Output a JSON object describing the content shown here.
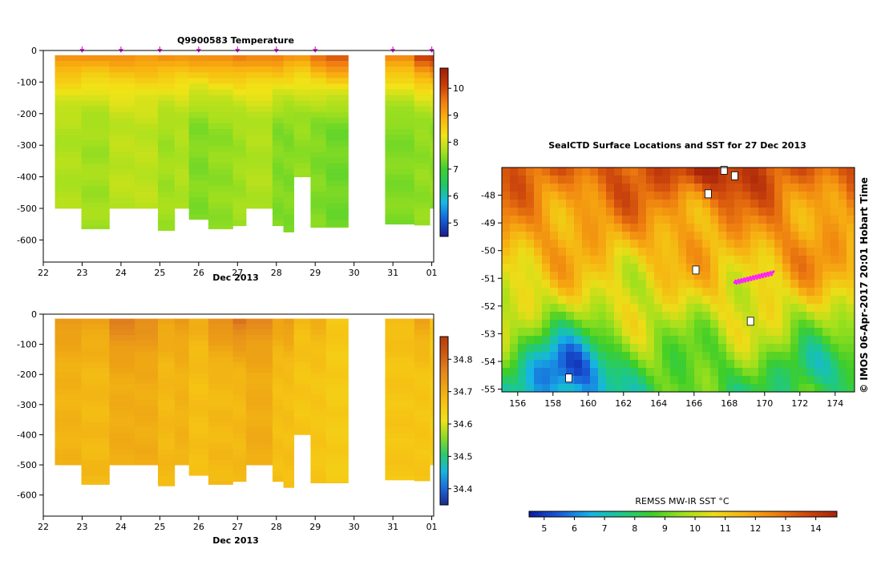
{
  "figure": {
    "colors": {
      "temperature_ramp": [
        "#1a1a8c",
        "#1560d8",
        "#17b8e8",
        "#1ec86a",
        "#3ecf2f",
        "#a6e01e",
        "#f1e317",
        "#f9b410",
        "#f07e12",
        "#c83c0a",
        "#a01e08"
      ],
      "salinity_ramp": [
        "#1a2a8c",
        "#1e6ad8",
        "#18b5dc",
        "#2ec86a",
        "#8fd82a",
        "#f0e21a",
        "#f6c414",
        "#eea414",
        "#e2841e",
        "#cc5a14",
        "#b43c0a"
      ],
      "sst_ramp": [
        "#0a1aa0",
        "#1a5cd8",
        "#16b4e6",
        "#1cc88c",
        "#3ece28",
        "#9ee01c",
        "#ecdd18",
        "#f7b212",
        "#ef8010",
        "#cf4a0c",
        "#a8240a"
      ],
      "track_magenta": "#ff20ff",
      "profile_marker": "#d820d8"
    }
  },
  "chart_data": [
    {
      "id": "temperature_section",
      "type": "heatmap",
      "title": "Q9900583  Temperature",
      "xlabel": "Dec 2013",
      "x_ticks": [
        "22",
        "23",
        "24",
        "25",
        "26",
        "27",
        "28",
        "29",
        "30",
        "31",
        "01"
      ],
      "x_tick_values": [
        22,
        23,
        24,
        25,
        26,
        27,
        28,
        29,
        30,
        31,
        32
      ],
      "xlim": [
        22,
        32.05
      ],
      "y_ticks": [
        "0",
        "-100",
        "-200",
        "-300",
        "-400",
        "-500",
        "-600"
      ],
      "y_tick_values": [
        0,
        -100,
        -200,
        -300,
        -400,
        -500,
        -600
      ],
      "ylim": [
        -670,
        0
      ],
      "colorbar_ticks": [
        "5",
        "6",
        "7",
        "8",
        "9",
        "10"
      ],
      "colorbar_tick_values": [
        5,
        6,
        7,
        8,
        9,
        10
      ],
      "colorbar_range": [
        4.5,
        10.75
      ],
      "profiles": [
        {
          "x0": 22.3,
          "x1": 22.98,
          "bottom": -500,
          "top_value": 9.5,
          "deep_value": 7.7
        },
        {
          "x0": 22.98,
          "x1": 23.7,
          "bottom": -565,
          "top_value": 9.4,
          "deep_value": 7.6
        },
        {
          "x0": 23.7,
          "x1": 24.35,
          "bottom": -500,
          "top_value": 9.4,
          "deep_value": 7.8
        },
        {
          "x0": 24.35,
          "x1": 24.95,
          "bottom": -500,
          "top_value": 9.4,
          "deep_value": 7.8
        },
        {
          "x0": 24.95,
          "x1": 25.38,
          "bottom": -570,
          "top_value": 9.5,
          "deep_value": 7.6
        },
        {
          "x0": 25.38,
          "x1": 25.75,
          "bottom": -500,
          "top_value": 9.3,
          "deep_value": 7.7
        },
        {
          "x0": 25.75,
          "x1": 26.25,
          "bottom": -535,
          "top_value": 9.5,
          "deep_value": 7.4
        },
        {
          "x0": 26.25,
          "x1": 26.88,
          "bottom": -565,
          "top_value": 9.6,
          "deep_value": 7.5
        },
        {
          "x0": 26.88,
          "x1": 27.22,
          "bottom": -555,
          "top_value": 9.7,
          "deep_value": 7.6
        },
        {
          "x0": 27.22,
          "x1": 27.9,
          "bottom": -500,
          "top_value": 9.5,
          "deep_value": 7.7
        },
        {
          "x0": 27.9,
          "x1": 28.18,
          "bottom": -555,
          "top_value": 9.7,
          "deep_value": 7.4
        },
        {
          "x0": 28.18,
          "x1": 28.45,
          "bottom": -575,
          "top_value": 9.5,
          "deep_value": 7.4
        },
        {
          "x0": 28.45,
          "x1": 28.88,
          "bottom": -400,
          "top_value": 9.3,
          "deep_value": 7.5
        },
        {
          "x0": 28.88,
          "x1": 29.28,
          "bottom": -560,
          "top_value": 9.8,
          "deep_value": 7.4
        },
        {
          "x0": 29.28,
          "x1": 29.85,
          "bottom": -560,
          "top_value": 10.2,
          "deep_value": 7.3
        },
        {
          "x0": 30.8,
          "x1": 31.55,
          "bottom": -550,
          "top_value": 9.6,
          "deep_value": 7.4
        },
        {
          "x0": 31.55,
          "x1": 31.95,
          "bottom": -553,
          "top_value": 10.3,
          "deep_value": 7.5
        },
        {
          "x0": 31.95,
          "x1": 32.05,
          "bottom": -500,
          "top_value": 10.5,
          "deep_value": 7.5
        }
      ],
      "profile_markers_x": [
        23.0,
        24.0,
        25.0,
        26.0,
        27.0,
        28.0,
        29.0,
        31.0,
        32.0
      ]
    },
    {
      "id": "salinity_section",
      "type": "heatmap",
      "title": "",
      "xlabel": "Dec 2013",
      "x_ticks": [
        "22",
        "23",
        "24",
        "25",
        "26",
        "27",
        "28",
        "29",
        "30",
        "31",
        "01"
      ],
      "x_tick_values": [
        22,
        23,
        24,
        25,
        26,
        27,
        28,
        29,
        30,
        31,
        32
      ],
      "xlim": [
        22,
        32.05
      ],
      "y_ticks": [
        "0",
        "-100",
        "-200",
        "-300",
        "-400",
        "-500",
        "-600"
      ],
      "y_tick_values": [
        0,
        -100,
        -200,
        -300,
        -400,
        -500,
        -600
      ],
      "ylim": [
        -670,
        0
      ],
      "colorbar_ticks": [
        "34.4",
        "34.5",
        "34.6",
        "34.7",
        "34.8"
      ],
      "colorbar_tick_values": [
        34.4,
        34.5,
        34.6,
        34.7,
        34.8
      ],
      "colorbar_range": [
        34.35,
        34.87
      ],
      "profiles": [
        {
          "x0": 22.3,
          "x1": 22.98,
          "bottom": -500,
          "top_value": 34.74,
          "deep_value": 34.69
        },
        {
          "x0": 22.98,
          "x1": 23.7,
          "bottom": -565,
          "top_value": 34.72,
          "deep_value": 34.68
        },
        {
          "x0": 23.7,
          "x1": 24.35,
          "bottom": -500,
          "top_value": 34.78,
          "deep_value": 34.7
        },
        {
          "x0": 24.35,
          "x1": 24.95,
          "bottom": -500,
          "top_value": 34.76,
          "deep_value": 34.7
        },
        {
          "x0": 24.95,
          "x1": 25.38,
          "bottom": -570,
          "top_value": 34.72,
          "deep_value": 34.68
        },
        {
          "x0": 25.38,
          "x1": 25.75,
          "bottom": -500,
          "top_value": 34.73,
          "deep_value": 34.69
        },
        {
          "x0": 25.75,
          "x1": 26.25,
          "bottom": -535,
          "top_value": 34.7,
          "deep_value": 34.67
        },
        {
          "x0": 26.25,
          "x1": 26.88,
          "bottom": -565,
          "top_value": 34.76,
          "deep_value": 34.68
        },
        {
          "x0": 26.88,
          "x1": 27.22,
          "bottom": -555,
          "top_value": 34.8,
          "deep_value": 34.68
        },
        {
          "x0": 27.22,
          "x1": 27.9,
          "bottom": -500,
          "top_value": 34.76,
          "deep_value": 34.7
        },
        {
          "x0": 27.9,
          "x1": 28.18,
          "bottom": -555,
          "top_value": 34.72,
          "deep_value": 34.67
        },
        {
          "x0": 28.18,
          "x1": 28.45,
          "bottom": -575,
          "top_value": 34.74,
          "deep_value": 34.67
        },
        {
          "x0": 28.45,
          "x1": 28.88,
          "bottom": -400,
          "top_value": 34.68,
          "deep_value": 34.66
        },
        {
          "x0": 28.88,
          "x1": 29.28,
          "bottom": -560,
          "top_value": 34.7,
          "deep_value": 34.66
        },
        {
          "x0": 29.28,
          "x1": 29.85,
          "bottom": -560,
          "top_value": 34.66,
          "deep_value": 34.65
        },
        {
          "x0": 30.8,
          "x1": 31.55,
          "bottom": -550,
          "top_value": 34.68,
          "deep_value": 34.66
        },
        {
          "x0": 31.55,
          "x1": 31.95,
          "bottom": -553,
          "top_value": 34.72,
          "deep_value": 34.66
        },
        {
          "x0": 31.95,
          "x1": 32.05,
          "bottom": -500,
          "top_value": 34.66,
          "deep_value": 34.65
        }
      ]
    },
    {
      "id": "sst_map",
      "type": "heatmap",
      "title": "SealCTD Surface Locations and SST for 27 Dec 2013",
      "xlabel": "",
      "ylabel": "",
      "x_ticks": [
        "156",
        "158",
        "160",
        "162",
        "164",
        "166",
        "168",
        "170",
        "172",
        "174"
      ],
      "x_tick_values": [
        156,
        158,
        160,
        162,
        164,
        166,
        168,
        170,
        172,
        174
      ],
      "xlim": [
        155.1,
        175.1
      ],
      "y_ticks": [
        "-48",
        "-49",
        "-50",
        "-51",
        "-52",
        "-53",
        "-54",
        "-55"
      ],
      "y_tick_values": [
        -48,
        -49,
        -50,
        -51,
        -52,
        -53,
        -54,
        -55
      ],
      "ylim": [
        -55.1,
        -47.0
      ],
      "colorbar_label": "REMSS MW-IR SST °C",
      "colorbar_ticks": [
        "5",
        "6",
        "7",
        "8",
        "9",
        "10",
        "11",
        "12",
        "13",
        "14"
      ],
      "colorbar_tick_values": [
        5,
        6,
        7,
        8,
        9,
        10,
        11,
        12,
        13,
        14
      ],
      "colorbar_range": [
        4.5,
        14.7
      ],
      "track_segment": {
        "lon": [
          168.3,
          170.5
        ],
        "lat": [
          -51.15,
          -50.8
        ]
      },
      "land_patches": [
        {
          "lon": 167.7,
          "lat": -47.1,
          "kind": "island"
        },
        {
          "lon": 168.3,
          "lat": -47.3,
          "kind": "island"
        },
        {
          "lon": 166.1,
          "lat": -50.7,
          "kind": "island"
        },
        {
          "lon": 169.2,
          "lat": -52.55,
          "kind": "island"
        },
        {
          "lon": 158.9,
          "lat": -54.6,
          "kind": "island"
        },
        {
          "lon": 166.8,
          "lat": -47.95,
          "kind": "island"
        }
      ],
      "side_caption": "© IMOS 06-Apr-2017 20:01 Hobart Time"
    }
  ]
}
